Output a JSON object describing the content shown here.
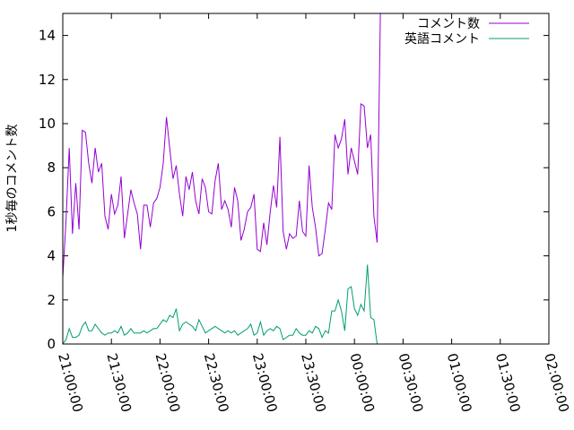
{
  "chart_data": {
    "type": "line",
    "title": "",
    "xlabel": "",
    "ylabel": "1秒毎のコメント数",
    "ylim": [
      0,
      15
    ],
    "xlim": [
      "21:00:00",
      "02:00:00"
    ],
    "x_ticks": [
      "21:00:00",
      "21:30:00",
      "22:00:00",
      "22:30:00",
      "23:00:00",
      "23:30:00",
      "00:00:00",
      "00:30:00",
      "01:00:00",
      "01:30:00",
      "02:00:00"
    ],
    "y_ticks": [
      "0",
      "2",
      "4",
      "6",
      "8",
      "10",
      "12",
      "14"
    ],
    "grid": false,
    "legend_position": "top-right",
    "sample_interval": "00:02:00",
    "series": [
      {
        "name": "コメント数",
        "color": "#9400d3",
        "values": [
          3.0,
          5.6,
          8.9,
          5.0,
          7.3,
          5.2,
          9.7,
          9.6,
          8.2,
          7.3,
          8.9,
          7.8,
          8.2,
          5.8,
          5.2,
          6.8,
          5.9,
          6.3,
          7.6,
          4.8,
          5.9,
          7.0,
          6.4,
          5.9,
          4.3,
          6.3,
          6.3,
          5.3,
          6.4,
          6.6,
          7.1,
          8.2,
          10.3,
          8.9,
          7.5,
          8.1,
          6.8,
          5.8,
          7.6,
          7.0,
          7.8,
          6.5,
          5.9,
          7.5,
          7.1,
          6.0,
          5.9,
          7.4,
          8.2,
          6.1,
          6.5,
          6.1,
          5.3,
          7.1,
          6.5,
          4.7,
          5.2,
          6.0,
          6.2,
          6.8,
          4.3,
          4.2,
          5.5,
          4.5,
          6.0,
          7.2,
          6.2,
          9.4,
          5.1,
          4.3,
          5.0,
          4.8,
          4.9,
          6.5,
          5.1,
          4.9,
          8.1,
          6.2,
          5.3,
          4.0,
          4.1,
          5.2,
          6.4,
          6.1,
          9.5,
          8.9,
          9.3,
          10.2,
          7.7,
          8.9,
          8.3,
          7.7,
          10.9,
          10.8,
          8.9,
          9.5,
          5.8,
          4.6,
          15.0
        ]
      },
      {
        "name": "英語コメント",
        "color": "#009e73",
        "values": [
          0.0,
          0.2,
          0.7,
          0.3,
          0.3,
          0.4,
          0.8,
          1.0,
          0.6,
          0.6,
          0.9,
          0.7,
          0.5,
          0.4,
          0.5,
          0.5,
          0.6,
          0.5,
          0.8,
          0.4,
          0.5,
          0.7,
          0.5,
          0.5,
          0.5,
          0.6,
          0.5,
          0.6,
          0.7,
          0.7,
          0.9,
          1.1,
          1.0,
          1.3,
          1.2,
          1.6,
          0.6,
          0.9,
          1.0,
          0.9,
          0.8,
          0.6,
          1.1,
          0.8,
          0.5,
          0.6,
          0.7,
          0.8,
          0.7,
          0.6,
          0.5,
          0.6,
          0.5,
          0.6,
          0.4,
          0.5,
          0.6,
          0.7,
          0.9,
          0.4,
          0.5,
          1.0,
          0.4,
          0.6,
          0.7,
          0.6,
          0.8,
          0.7,
          0.2,
          0.3,
          0.4,
          0.4,
          0.7,
          0.5,
          0.4,
          0.4,
          0.6,
          0.5,
          0.8,
          0.7,
          0.3,
          0.6,
          0.5,
          1.5,
          1.5,
          2.0,
          1.5,
          0.6,
          2.5,
          2.6,
          1.6,
          1.3,
          1.8,
          1.5,
          3.6,
          1.2,
          1.1,
          0.0,
          0.0
        ]
      }
    ]
  }
}
